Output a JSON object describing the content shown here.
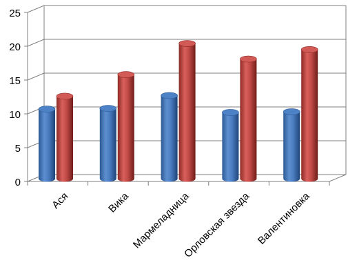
{
  "chart_data": {
    "type": "bar",
    "categories": [
      "Ася",
      "Вика",
      "Мармеладница",
      "Орловская звезда",
      "Валентиновка"
    ],
    "series": [
      {
        "values": [
          10.3,
          10.4,
          12.3,
          9.8,
          9.9
        ],
        "color": "#4f81bd"
      },
      {
        "values": [
          12.2,
          15.4,
          20.0,
          17.7,
          19.1
        ],
        "color": "#c0504d"
      }
    ],
    "ylim": [
      0,
      25
    ],
    "yticks": [
      "0",
      "5",
      "10",
      "15",
      "20",
      "25"
    ],
    "grid": true,
    "style": "3d-cylinder"
  }
}
